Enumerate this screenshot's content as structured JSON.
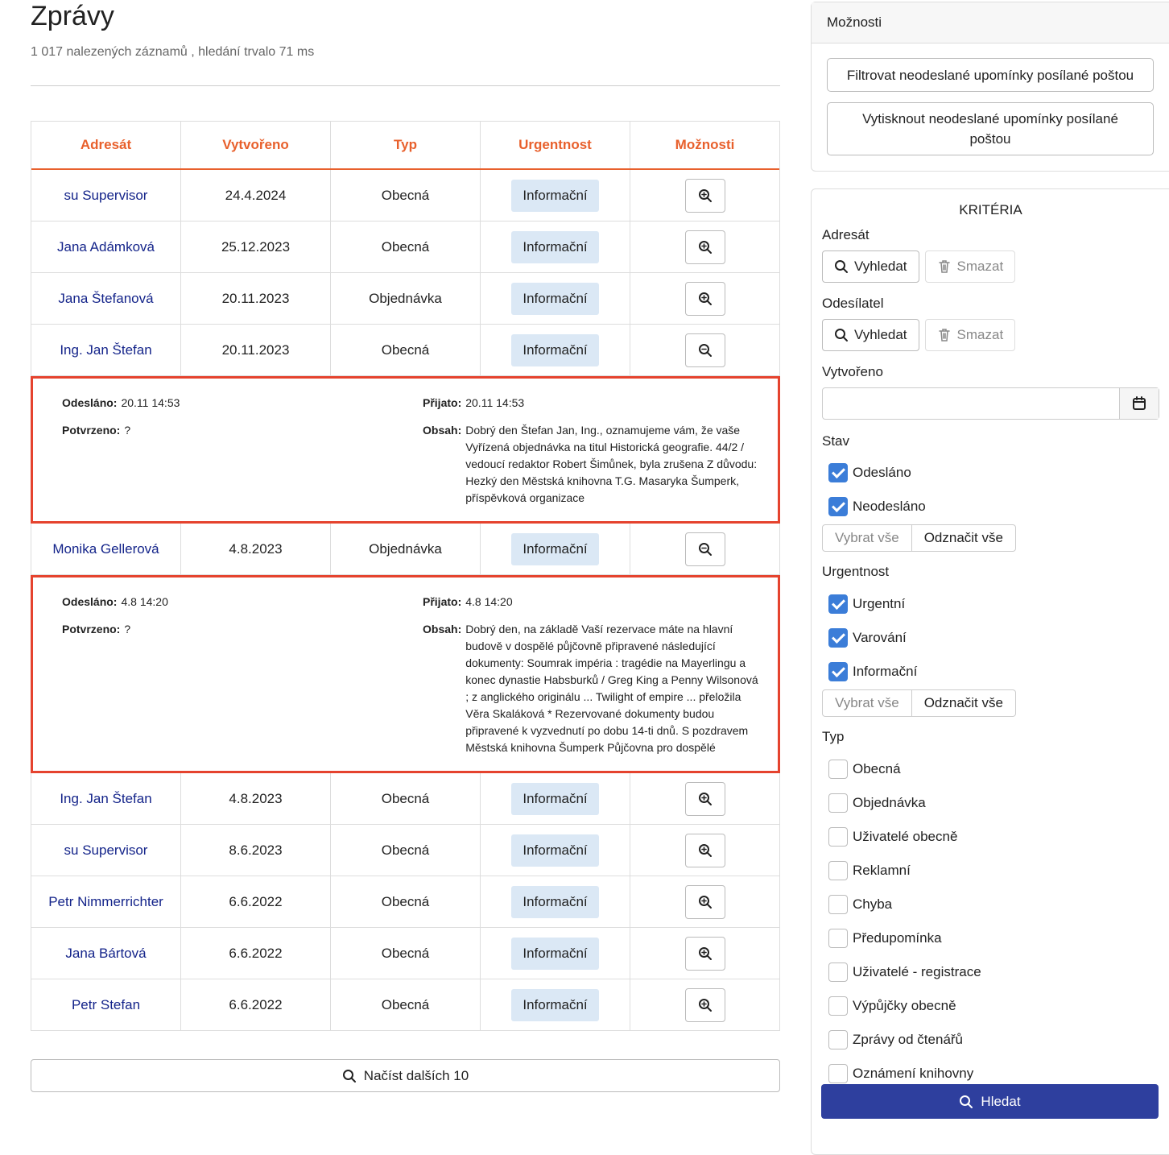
{
  "header": {
    "title": "Zprávy",
    "summary": "1 017 nalezených záznamů , hledání trvalo 71 ms"
  },
  "table": {
    "columns": [
      "Adresát",
      "Vytvořeno",
      "Typ",
      "Urgentnost",
      "Možnosti"
    ],
    "rows": [
      {
        "recipient": "su Supervisor",
        "created": "24.4.2024",
        "type": "Obecná",
        "urgency": "Informační"
      },
      {
        "recipient": "Jana Adámková",
        "created": "25.12.2023",
        "type": "Obecná",
        "urgency": "Informační"
      },
      {
        "recipient": "Jana Štefanová",
        "created": "20.11.2023",
        "type": "Objednávka",
        "urgency": "Informační"
      },
      {
        "recipient": "Ing. Jan Štefan",
        "created": "20.11.2023",
        "type": "Obecná",
        "urgency": "Informační",
        "detail": {
          "sent_label": "Odesláno:",
          "sent": "20.11 14:53",
          "received_label": "Přijato:",
          "received": "20.11 14:53",
          "confirmed_label": "Potvrzeno:",
          "confirmed": "?",
          "content_label": "Obsah:",
          "content": "Dobrý den Štefan Jan, Ing., oznamujeme vám, že vaše Vyřízená objednávka na titul Historická geografie. 44/2 / vedoucí redaktor Robert Šimůnek, byla zrušena Z důvodu: Hezký den Městská knihovna T.G. Masaryka Šumperk, příspěvková organizace"
        }
      },
      {
        "recipient": "Monika Gellerová",
        "created": "4.8.2023",
        "type": "Objednávka",
        "urgency": "Informační",
        "detail": {
          "sent_label": "Odesláno:",
          "sent": "4.8 14:20",
          "received_label": "Přijato:",
          "received": "4.8 14:20",
          "confirmed_label": "Potvrzeno:",
          "confirmed": "?",
          "content_label": "Obsah:",
          "content": "Dobrý den, na základě Vaší rezervace máte na hlavní budově v dospělé půjčovně připravené následující dokumenty: Soumrak impéria : tragédie na Mayerlingu a konec dynastie Habsburků / Greg King a Penny Wilsonová ; z anglického originálu ... Twilight of empire ... přeložila Věra Skaláková * Rezervované dokumenty budou připravené k vyzvednutí po dobu 14-ti dnů. S pozdravem Městská knihovna Šumperk Půjčovna pro dospělé"
        }
      },
      {
        "recipient": "Ing. Jan Štefan",
        "created": "4.8.2023",
        "type": "Obecná",
        "urgency": "Informační"
      },
      {
        "recipient": "su Supervisor",
        "created": "8.6.2023",
        "type": "Obecná",
        "urgency": "Informační"
      },
      {
        "recipient": "Petr Nimmerrichter",
        "created": "6.6.2022",
        "type": "Obecná",
        "urgency": "Informační"
      },
      {
        "recipient": "Jana Bártová",
        "created": "6.6.2022",
        "type": "Obecná",
        "urgency": "Informační"
      },
      {
        "recipient": "Petr Stefan",
        "created": "6.6.2022",
        "type": "Obecná",
        "urgency": "Informační"
      }
    ],
    "load_more": "Načíst dalších 10"
  },
  "options": {
    "title": "Možnosti",
    "buttons": [
      "Filtrovat neodeslané upomínky posílané poštou",
      "Vytisknout neodeslané upomínky posílané poštou"
    ]
  },
  "criteria": {
    "title": "KRITÉRIA",
    "recipient": {
      "label": "Adresát",
      "search": "Vyhledat",
      "clear": "Smazat"
    },
    "sender": {
      "label": "Odesílatel",
      "search": "Vyhledat",
      "clear": "Smazat"
    },
    "created": {
      "label": "Vytvořeno"
    },
    "status": {
      "label": "Stav",
      "options": [
        {
          "label": "Odesláno",
          "checked": true
        },
        {
          "label": "Neodesláno",
          "checked": true
        }
      ],
      "select_all": "Vybrat vše",
      "deselect_all": "Odznačit vše"
    },
    "urgency": {
      "label": "Urgentnost",
      "options": [
        {
          "label": "Urgentní",
          "checked": true
        },
        {
          "label": "Varování",
          "checked": true
        },
        {
          "label": "Informační",
          "checked": true
        }
      ],
      "select_all": "Vybrat vše",
      "deselect_all": "Odznačit vše"
    },
    "type": {
      "label": "Typ",
      "options": [
        {
          "label": "Obecná",
          "checked": false
        },
        {
          "label": "Objednávka",
          "checked": false
        },
        {
          "label": "Uživatelé obecně",
          "checked": false
        },
        {
          "label": "Reklamní",
          "checked": false
        },
        {
          "label": "Chyba",
          "checked": false
        },
        {
          "label": "Předupomínka",
          "checked": false
        },
        {
          "label": "Uživatelé - registrace",
          "checked": false
        },
        {
          "label": "Výpůjčky obecně",
          "checked": false
        },
        {
          "label": "Zprávy od čtenářů",
          "checked": false
        },
        {
          "label": "Oznámení knihovny",
          "checked": false
        }
      ]
    },
    "submit": "Hledat"
  }
}
